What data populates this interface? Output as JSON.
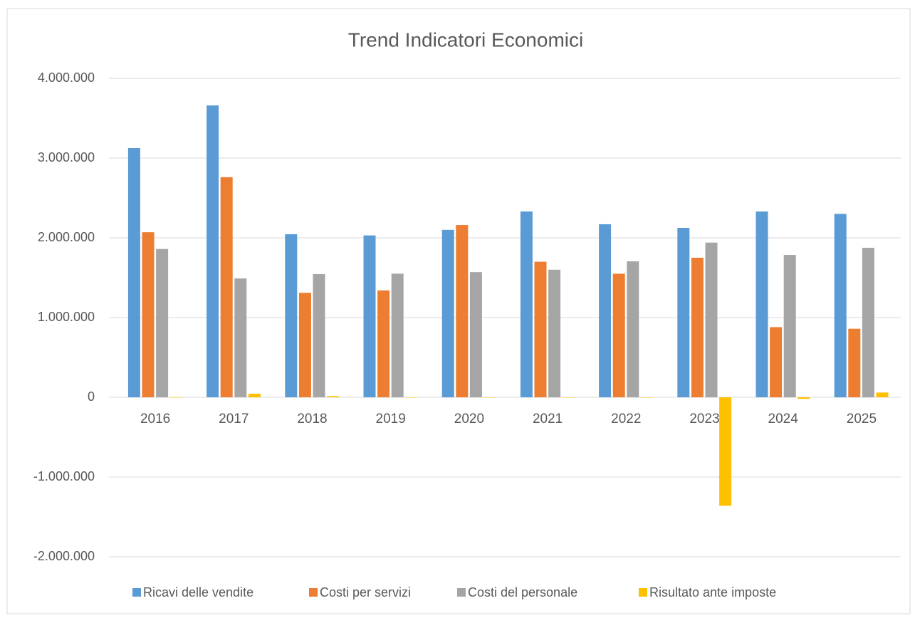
{
  "chart_data": {
    "type": "bar",
    "title": "Trend Indicatori Economici",
    "categories": [
      "2016",
      "2017",
      "2018",
      "2019",
      "2020",
      "2021",
      "2022",
      "2023",
      "2024",
      "2025"
    ],
    "series": [
      {
        "name": "Ricavi delle vendite",
        "color": "#5b9bd5",
        "values": [
          3125000,
          3660000,
          2045000,
          2030000,
          2100000,
          2330000,
          2170000,
          2125000,
          2330000,
          2300000
        ]
      },
      {
        "name": "Costi per servizi",
        "color": "#ed7d31",
        "values": [
          2070000,
          2760000,
          1310000,
          1340000,
          2160000,
          1700000,
          1550000,
          1750000,
          880000,
          860000
        ]
      },
      {
        "name": "Costi del personale",
        "color": "#a5a5a5",
        "values": [
          1860000,
          1490000,
          1545000,
          1550000,
          1570000,
          1600000,
          1705000,
          1940000,
          1785000,
          1875000
        ]
      },
      {
        "name": "Risultato ante imposte",
        "color": "#ffc000",
        "values": [
          0,
          45000,
          15000,
          0,
          0,
          0,
          0,
          -1360000,
          -20000,
          60000
        ]
      }
    ],
    "ylim": [
      -2000000,
      4000000
    ],
    "yticks": [
      {
        "value": -2000000,
        "label": "-2.000.000"
      },
      {
        "value": -1000000,
        "label": "-1.000.000"
      },
      0,
      {
        "value": 1000000,
        "label": "1.000.000"
      },
      {
        "value": 2000000,
        "label": "2.000.000"
      },
      {
        "value": 3000000,
        "label": "3.000.000"
      },
      {
        "value": 4000000,
        "label": "4.000.000"
      }
    ],
    "grid": true
  }
}
